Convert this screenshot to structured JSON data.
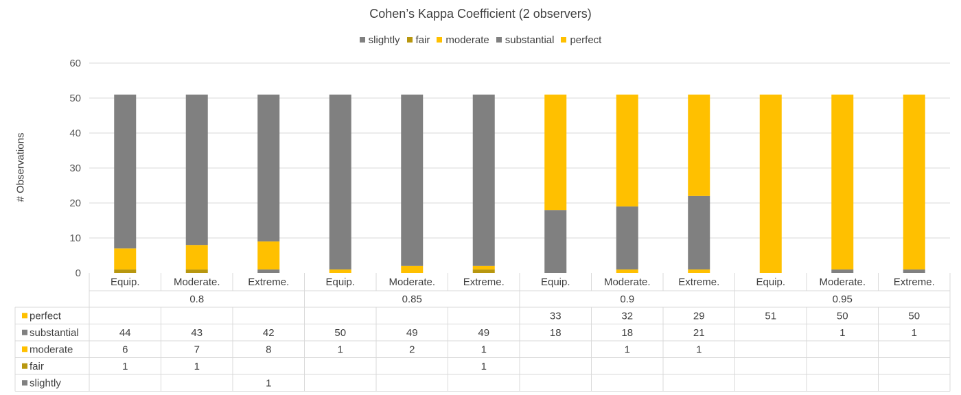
{
  "chart_data": {
    "type": "bar",
    "stacked": true,
    "title": "Cohen’s Kappa Coefficient (2 observers)",
    "ylabel": "# Observations",
    "xlabel": "",
    "ylim": [
      0,
      60
    ],
    "yticks": [
      0,
      10,
      20,
      30,
      40,
      50,
      60
    ],
    "grid": true,
    "legend_position": "top",
    "groups": [
      "0.8",
      "0.85",
      "0.9",
      "0.95"
    ],
    "categories": [
      "Equip.",
      "Moderate.",
      "Extreme.",
      "Equip.",
      "Moderate.",
      "Extreme.",
      "Equip.",
      "Moderate.",
      "Extreme.",
      "Equip.",
      "Moderate.",
      "Extreme."
    ],
    "series": [
      {
        "name": "slightly",
        "color": "#808080",
        "values": [
          null,
          null,
          1,
          null,
          null,
          null,
          null,
          null,
          null,
          null,
          null,
          null
        ]
      },
      {
        "name": "fair",
        "color": "#b8970f",
        "values": [
          1,
          1,
          null,
          null,
          null,
          1,
          null,
          null,
          null,
          null,
          null,
          null
        ]
      },
      {
        "name": "moderate",
        "color": "#ffc000",
        "values": [
          6,
          7,
          8,
          1,
          2,
          1,
          null,
          1,
          1,
          null,
          null,
          null
        ]
      },
      {
        "name": "substantial",
        "color": "#808080",
        "values": [
          44,
          43,
          42,
          50,
          49,
          49,
          18,
          18,
          21,
          null,
          1,
          1
        ]
      },
      {
        "name": "perfect",
        "color": "#ffc000",
        "values": [
          null,
          null,
          null,
          null,
          null,
          null,
          33,
          32,
          29,
          51,
          50,
          50
        ]
      }
    ],
    "table_row_order": [
      "perfect",
      "substantial",
      "moderate",
      "fair",
      "slightly"
    ]
  }
}
